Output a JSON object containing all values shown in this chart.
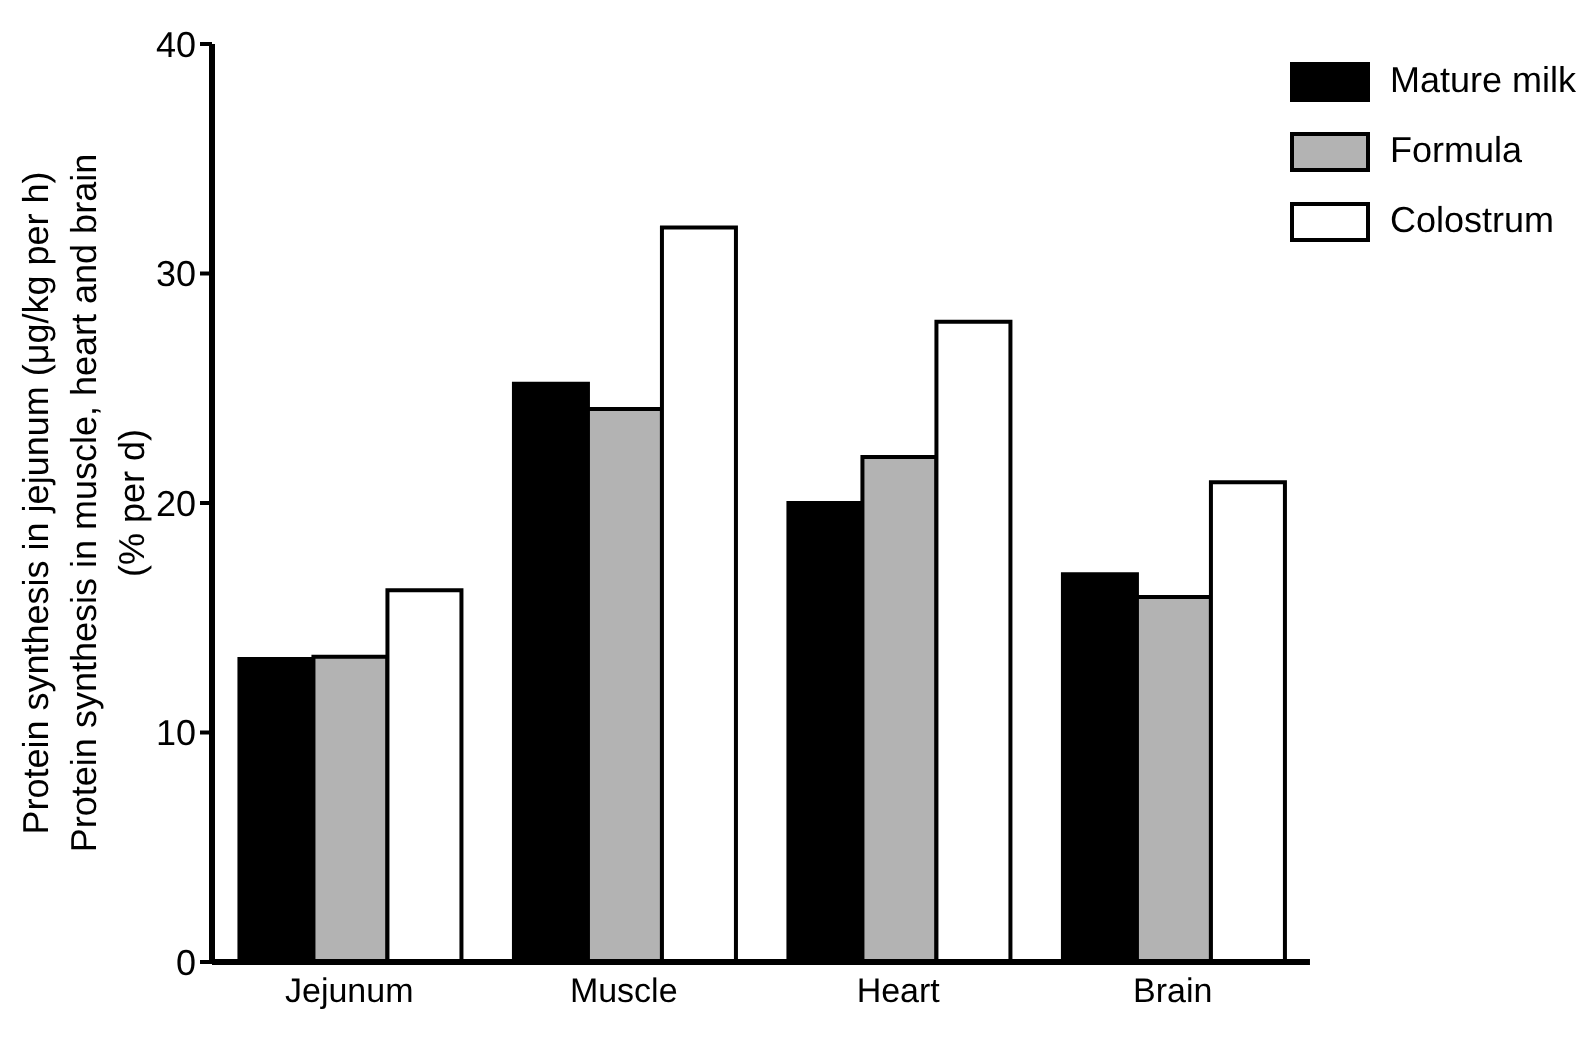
{
  "chart_data": {
    "type": "bar",
    "ylabel": "Protein synthesis in jejunum (μg/kg per h)\nProtein synthesis in muscle, heart and brain\n(% per d)",
    "categories": [
      "Jejunum",
      "Muscle",
      "Heart",
      "Brain"
    ],
    "series": [
      {
        "name": "Mature milk",
        "color": "#000000",
        "values": [
          13.2,
          25.2,
          20.0,
          16.9
        ]
      },
      {
        "name": "Formula",
        "color": "#b3b3b3",
        "values": [
          13.3,
          24.1,
          22.0,
          15.9
        ]
      },
      {
        "name": "Colostrum",
        "color": "#ffffff",
        "values": [
          16.2,
          32.0,
          27.9,
          20.9
        ]
      }
    ],
    "ylim": [
      0,
      40
    ],
    "yticks": [
      0,
      10,
      20,
      30,
      40
    ],
    "grid": false,
    "legend": "top right"
  }
}
